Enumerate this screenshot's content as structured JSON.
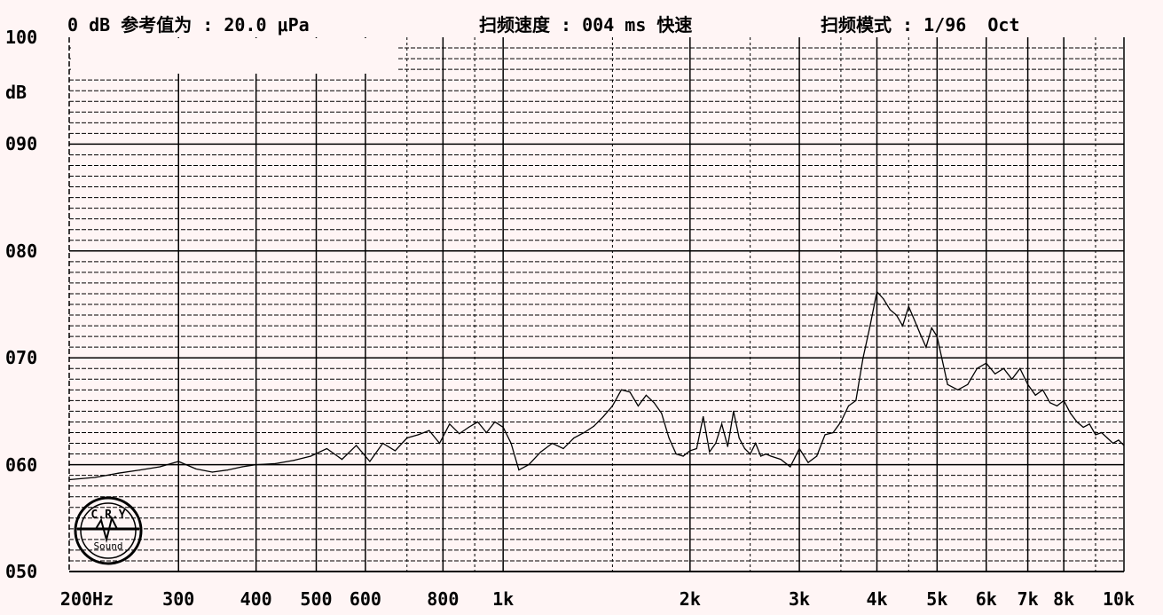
{
  "header": {
    "ref_text": "0 dB 参考值为 : 20.0 μPa",
    "speed_text": "扫频速度 : 004 ms 快速",
    "mode_text": "扫频模式 : 1/96  Oct"
  },
  "colors": {
    "background": "#fff5f5",
    "grid": "#000000",
    "trace": "#000000"
  },
  "logo": {
    "top_text": "C.R.Y",
    "bottom_text": "Sound"
  },
  "chart_data": {
    "type": "line",
    "title": "",
    "xlabel": "",
    "ylabel": "dB",
    "x_scale": "log",
    "xlim": [
      200,
      10000
    ],
    "ylim": [
      50,
      100
    ],
    "y_ticks": [
      {
        "value": 100,
        "label": "100"
      },
      {
        "value": 90,
        "label": "090"
      },
      {
        "value": 80,
        "label": "080"
      },
      {
        "value": 70,
        "label": "070"
      },
      {
        "value": 60,
        "label": "060"
      },
      {
        "value": 50,
        "label": "050"
      }
    ],
    "y_unit": "dB",
    "x_ticks": [
      {
        "value": 200,
        "label": "200Hz"
      },
      {
        "value": 300,
        "label": "300"
      },
      {
        "value": 400,
        "label": "400"
      },
      {
        "value": 500,
        "label": "500"
      },
      {
        "value": 600,
        "label": "600"
      },
      {
        "value": 800,
        "label": "800"
      },
      {
        "value": 1000,
        "label": "1k"
      },
      {
        "value": 2000,
        "label": "2k"
      },
      {
        "value": 3000,
        "label": "3k"
      },
      {
        "value": 4000,
        "label": "4k"
      },
      {
        "value": 5000,
        "label": "5k"
      },
      {
        "value": 6000,
        "label": "6k"
      },
      {
        "value": 7000,
        "label": "7k"
      },
      {
        "value": 8000,
        "label": "8k"
      },
      {
        "value": 10000,
        "label": "10k"
      }
    ],
    "grid": true,
    "series": [
      {
        "x": [
          200,
          220,
          240,
          260,
          280,
          300,
          320,
          340,
          360,
          380,
          400,
          430,
          460,
          490,
          520,
          550,
          580,
          610,
          640,
          670,
          700,
          730,
          760,
          790,
          820,
          850,
          880,
          910,
          940,
          970,
          1000,
          1030,
          1060,
          1100,
          1150,
          1200,
          1250,
          1300,
          1350,
          1400,
          1450,
          1500,
          1550,
          1600,
          1650,
          1700,
          1750,
          1800,
          1850,
          1900,
          1950,
          2000,
          2050,
          2100,
          2150,
          2200,
          2250,
          2300,
          2350,
          2400,
          2450,
          2500,
          2550,
          2600,
          2650,
          2700,
          2800,
          2900,
          3000,
          3100,
          3200,
          3300,
          3400,
          3500,
          3600,
          3700,
          3800,
          3900,
          4000,
          4100,
          4200,
          4300,
          4400,
          4500,
          4600,
          4700,
          4800,
          4900,
          5000,
          5200,
          5400,
          5600,
          5800,
          6000,
          6200,
          6400,
          6600,
          6800,
          7000,
          7200,
          7400,
          7600,
          7800,
          8000,
          8200,
          8400,
          8600,
          8800,
          9000,
          9200,
          9400,
          9600,
          9800,
          10000
        ],
        "y": [
          58.6,
          58.8,
          59.2,
          59.5,
          59.8,
          60.3,
          59.6,
          59.3,
          59.5,
          59.8,
          60.0,
          60.1,
          60.4,
          60.8,
          61.5,
          60.5,
          61.8,
          60.3,
          62.0,
          61.3,
          62.5,
          62.8,
          63.2,
          62.0,
          63.8,
          62.9,
          63.5,
          64.0,
          63.0,
          64.0,
          63.5,
          62.0,
          59.5,
          60.0,
          61.2,
          62.0,
          61.5,
          62.5,
          63.0,
          63.6,
          64.5,
          65.5,
          67.0,
          66.8,
          65.5,
          66.5,
          65.8,
          64.8,
          62.5,
          61.0,
          60.8,
          61.3,
          61.5,
          64.5,
          61.2,
          62.0,
          63.8,
          61.7,
          65.0,
          62.5,
          61.5,
          61.0,
          62.0,
          60.8,
          61.0,
          60.8,
          60.5,
          59.8,
          61.5,
          60.2,
          60.8,
          62.8,
          63.0,
          64.0,
          65.5,
          66.0,
          70.0,
          73.0,
          76.2,
          75.5,
          74.5,
          74.0,
          73.0,
          74.8,
          73.5,
          72.2,
          71.0,
          72.8,
          72.0,
          67.5,
          67.0,
          67.5,
          69.0,
          69.5,
          68.5,
          69.0,
          68.0,
          69.0,
          67.5,
          66.5,
          67.0,
          65.8,
          65.5,
          66.0,
          64.8,
          64.0,
          63.5,
          63.8,
          62.8,
          63.0,
          62.5,
          62.0,
          62.3,
          61.8
        ]
      }
    ]
  }
}
